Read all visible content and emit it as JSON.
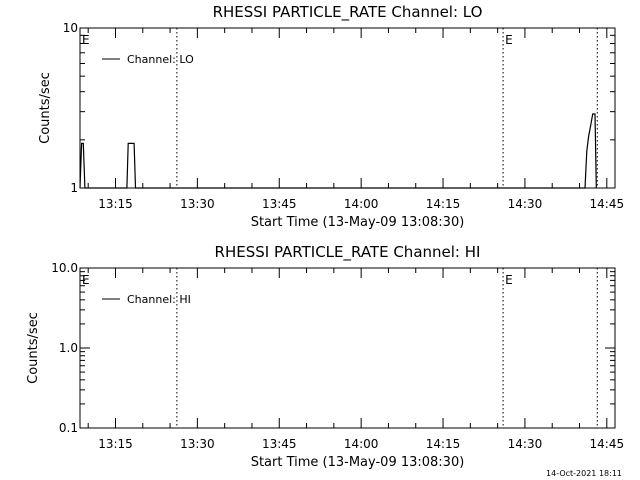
{
  "footer": {
    "timestamp": "14-Oct-2021 18:11"
  },
  "chart_data": [
    {
      "type": "line",
      "title": "RHESSI PARTICLE_RATE Channel: LO",
      "xlabel": "Start Time (13-May-09 13:08:30)",
      "ylabel": "Counts/sec",
      "yscale": "log",
      "xlim": [
        "13:08:30",
        "14:46:30"
      ],
      "ylim": [
        1,
        10
      ],
      "x_ticks": [
        "13:15",
        "13:30",
        "13:45",
        "14:00",
        "14:15",
        "14:30",
        "14:45"
      ],
      "y_ticks": [
        "1",
        "10"
      ],
      "legend": {
        "position": "top-left"
      },
      "series": [
        {
          "name": "Channel: LO",
          "color": "#000000",
          "points": [
            [
              "13:08:30",
              1
            ],
            [
              "13:08:48",
              1.9
            ],
            [
              "13:09:06",
              1.9
            ],
            [
              "13:09:24",
              1
            ],
            [
              "13:17:05",
              1
            ],
            [
              "13:17:20",
              1.9
            ],
            [
              "13:18:25",
              1.9
            ],
            [
              "13:18:40",
              1
            ],
            [
              "14:41:00",
              1
            ],
            [
              "14:41:20",
              1.7
            ],
            [
              "14:41:40",
              2.1
            ],
            [
              "14:42:05",
              2.5
            ],
            [
              "14:42:25",
              2.9
            ],
            [
              "14:42:50",
              2.9
            ],
            [
              "14:43:05",
              1
            ]
          ]
        }
      ],
      "vlines": [
        {
          "x": "13:26:15",
          "style": "dotted"
        },
        {
          "x": "14:26:00",
          "style": "dotted"
        },
        {
          "x": "14:43:15",
          "style": "dotted"
        }
      ],
      "annotations": [
        {
          "text": "E",
          "x": "13:08:30"
        },
        {
          "text": "E",
          "x": "14:26:00"
        }
      ]
    },
    {
      "type": "line",
      "title": "RHESSI PARTICLE_RATE Channel: HI",
      "xlabel": "Start Time (13-May-09 13:08:30)",
      "ylabel": "Counts/sec",
      "yscale": "log",
      "xlim": [
        "13:08:30",
        "14:46:30"
      ],
      "ylim": [
        0.1,
        10
      ],
      "x_ticks": [
        "13:15",
        "13:30",
        "13:45",
        "14:00",
        "14:15",
        "14:30",
        "14:45"
      ],
      "y_ticks": [
        "0.1",
        "1.0",
        "10.0"
      ],
      "legend": {
        "position": "top-left"
      },
      "series": [
        {
          "name": "Channel: HI",
          "color": "#000000",
          "points": []
        }
      ],
      "vlines": [
        {
          "x": "13:26:15",
          "style": "dotted"
        },
        {
          "x": "14:26:00",
          "style": "dotted"
        },
        {
          "x": "14:43:15",
          "style": "dotted"
        }
      ],
      "annotations": [
        {
          "text": "E",
          "x": "13:08:30"
        },
        {
          "text": "E",
          "x": "14:26:00"
        }
      ]
    }
  ]
}
